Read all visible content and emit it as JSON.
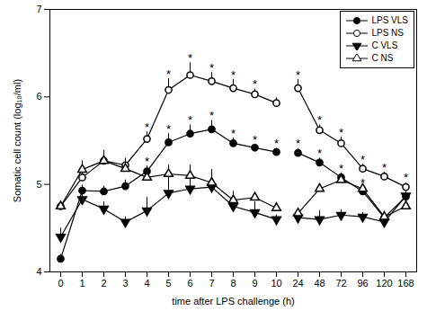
{
  "chart_data": {
    "type": "line",
    "xlabel": "time after LPS challenge (h)",
    "ylabel": "Somatic cell count (log₁₀/ml)",
    "categories": [
      0,
      1,
      2,
      3,
      4,
      5,
      6,
      7,
      8,
      9,
      10,
      24,
      48,
      72,
      96,
      120,
      168
    ],
    "ylim": [
      4,
      7
    ],
    "yticks": [
      4,
      5,
      6,
      7
    ],
    "legend": "top-right",
    "series": [
      {
        "name": "LPS VLS",
        "color": "#000000",
        "marker": "circle",
        "values": [
          4.15,
          4.93,
          4.92,
          4.98,
          5.15,
          5.48,
          5.58,
          5.63,
          5.47,
          5.42,
          5.37,
          5.36,
          5.25,
          5.08,
          4.92,
          4.62,
          4.86
        ],
        "error": [
          0.05,
          0.06,
          0.06,
          0.07,
          0.06,
          0.1,
          0.1,
          0.1,
          0.06,
          0.04,
          0.04,
          0.05,
          0.05,
          0.05,
          0.04,
          0.04,
          0.05
        ],
        "annotations": [
          null,
          null,
          null,
          null,
          "*",
          "*",
          "*",
          "*",
          "*",
          "*",
          "*",
          "*",
          "*",
          "*",
          "*",
          null,
          null
        ]
      },
      {
        "name": "LPS NS",
        "color": "#000000",
        "marker": "circle-open",
        "values": [
          4.75,
          5.08,
          5.27,
          5.22,
          5.52,
          6.08,
          6.25,
          6.18,
          6.1,
          6.03,
          5.93,
          6.1,
          5.62,
          5.47,
          5.18,
          5.09,
          4.97
        ],
        "error": [
          0.05,
          0.06,
          0.08,
          0.08,
          0.08,
          0.13,
          0.14,
          0.1,
          0.1,
          0.06,
          0.06,
          0.1,
          0.06,
          0.07,
          0.05,
          0.05,
          0.05
        ],
        "annotations": [
          null,
          null,
          null,
          null,
          "*",
          "*",
          "*",
          "*",
          "*",
          "*",
          null,
          "*",
          "*",
          "*",
          "*",
          "*",
          "*"
        ]
      },
      {
        "name": "C VLS",
        "color": "#000000",
        "marker": "triangle-down",
        "values": [
          4.4,
          4.83,
          4.72,
          4.57,
          4.7,
          4.9,
          4.95,
          4.97,
          4.75,
          4.68,
          4.6,
          4.62,
          4.6,
          4.65,
          4.63,
          4.57,
          4.87
        ],
        "error": [
          0.1,
          0.06,
          0.08,
          0.06,
          0.15,
          0.3,
          0.25,
          0.2,
          0.15,
          0.12,
          0.05,
          0.05,
          0.1,
          0.06,
          0.05,
          0.05,
          0.05
        ],
        "annotations": [
          null,
          null,
          null,
          null,
          null,
          null,
          null,
          null,
          null,
          null,
          null,
          null,
          null,
          null,
          null,
          null,
          null
        ]
      },
      {
        "name": "C NS",
        "color": "#000000",
        "marker": "triangle-open",
        "values": [
          4.75,
          5.17,
          5.27,
          5.18,
          5.08,
          5.12,
          5.1,
          5.02,
          4.82,
          4.85,
          4.73,
          4.67,
          4.95,
          5.05,
          4.95,
          4.63,
          4.75
        ],
        "error": [
          0.05,
          0.1,
          0.12,
          0.1,
          0.1,
          0.1,
          0.12,
          0.1,
          0.1,
          0.06,
          0.06,
          0.04,
          0.05,
          0.06,
          0.05,
          0.05,
          0.05
        ],
        "annotations": [
          null,
          null,
          null,
          null,
          null,
          null,
          null,
          null,
          null,
          null,
          null,
          null,
          null,
          null,
          null,
          null,
          null
        ]
      }
    ]
  }
}
